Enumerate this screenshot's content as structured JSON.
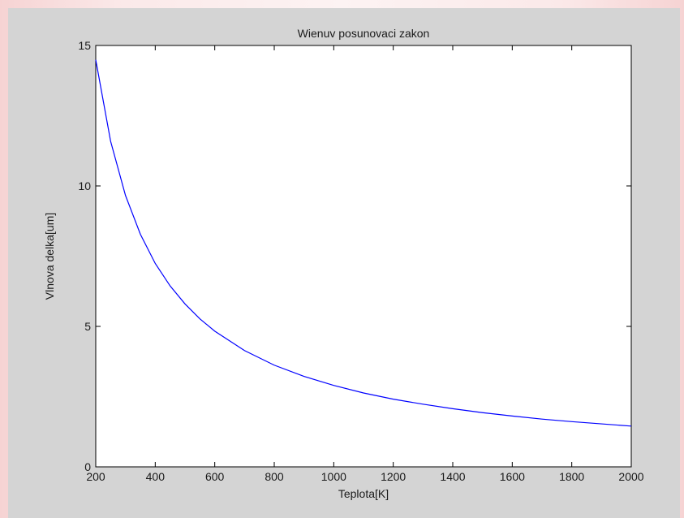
{
  "chart_data": {
    "type": "line",
    "title": "Wienuv posunovaci zakon",
    "xlabel": "Teplota[K]",
    "ylabel": "Vlnova delka[um]",
    "xlim": [
      200,
      2000
    ],
    "ylim": [
      0,
      15
    ],
    "xticks": [
      200,
      400,
      600,
      800,
      1000,
      1200,
      1400,
      1600,
      1800,
      2000
    ],
    "yticks": [
      0,
      5,
      10,
      15
    ],
    "grid": false,
    "series": [
      {
        "color": "#0000ff",
        "x": [
          200,
          250,
          300,
          350,
          400,
          450,
          500,
          550,
          600,
          700,
          800,
          900,
          1000,
          1100,
          1200,
          1300,
          1400,
          1500,
          1600,
          1700,
          1800,
          1900,
          2000
        ],
        "y": [
          14.49,
          11.59,
          9.66,
          8.28,
          7.24,
          6.44,
          5.8,
          5.27,
          4.83,
          4.14,
          3.62,
          3.22,
          2.9,
          2.63,
          2.41,
          2.23,
          2.07,
          1.93,
          1.81,
          1.7,
          1.61,
          1.53,
          1.45
        ]
      }
    ]
  },
  "colors": {
    "figure_background": "#d4d4d4",
    "plot_background": "#ffffff",
    "axis": "#000000",
    "line": "#0000ff"
  }
}
